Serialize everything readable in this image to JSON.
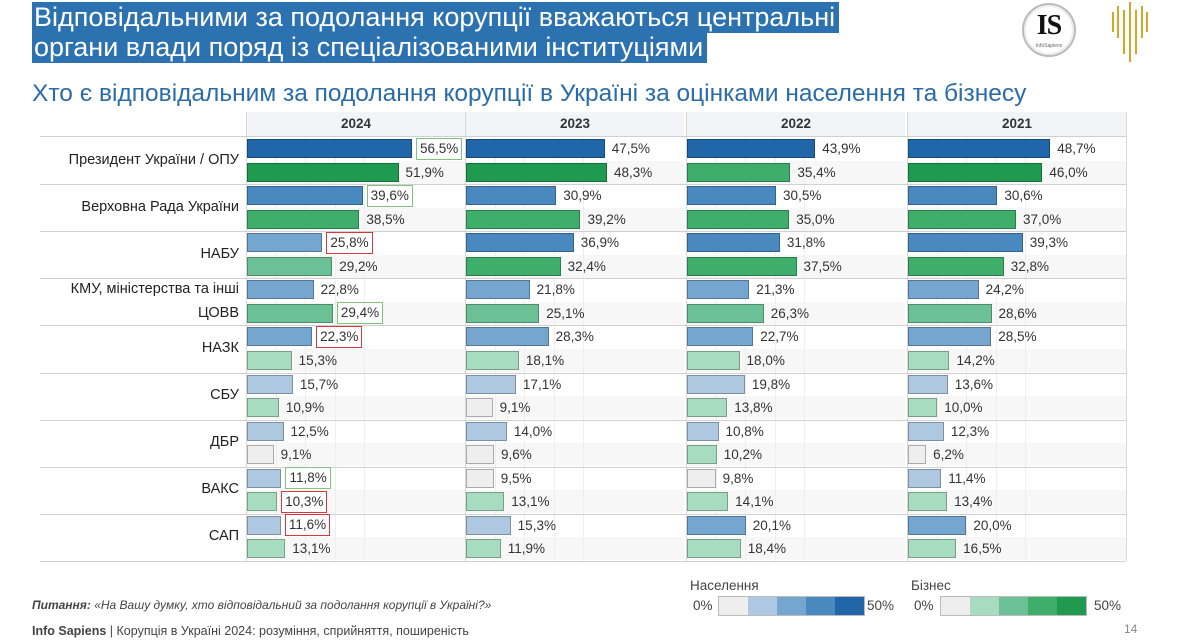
{
  "header": {
    "title_line1": "Відповідальними за подолання корупції вважаються центральні",
    "title_line2": "органи влади поряд із спеціалізованими інституціями",
    "subtitle": "Хто є відповідальним за подолання корупції в Україні за оцінками населення та бізнесу",
    "logo_is_text": "IS",
    "logo_is_sub": "InfoSapiens"
  },
  "colors": {
    "title_bg": "#2c72b0",
    "subtitle": "#2a6ca8",
    "population_scale": [
      "#eeeeee",
      "#aec8e2",
      "#75a6d0",
      "#4a88c0",
      "#2166a8"
    ],
    "business_scale": [
      "#eeeeee",
      "#a8dcc0",
      "#6cc095",
      "#3fae6a",
      "#1f9a4f"
    ],
    "highlight_green": "#7cc47f",
    "highlight_red": "#d9363e"
  },
  "chart_data": {
    "type": "bar",
    "orientation": "horizontal",
    "title": "Хто є відповідальним за подолання корупції в Україні за оцінками населення та бізнесу",
    "xlim": [
      0,
      50
    ],
    "unit": "%",
    "panels": [
      "2024",
      "2023",
      "2022",
      "2021"
    ],
    "categories": [
      {
        "label_lines": [
          "Президент України / ОПУ"
        ]
      },
      {
        "label_lines": [
          "Верховна Рада України"
        ]
      },
      {
        "label_lines": [
          "НАБУ"
        ]
      },
      {
        "label_lines": [
          "КМУ, міністерства та інші",
          "ЦОВВ"
        ]
      },
      {
        "label_lines": [
          "НАЗК"
        ]
      },
      {
        "label_lines": [
          "СБУ"
        ]
      },
      {
        "label_lines": [
          "ДБР"
        ]
      },
      {
        "label_lines": [
          "ВАКС"
        ]
      },
      {
        "label_lines": [
          "САП"
        ]
      }
    ],
    "series": [
      {
        "name": "Населення",
        "values": {
          "2024": [
            56.5,
            39.6,
            25.8,
            22.8,
            22.3,
            15.7,
            12.5,
            11.8,
            11.6
          ],
          "2023": [
            47.5,
            30.9,
            36.9,
            21.8,
            28.3,
            17.1,
            14.0,
            9.5,
            15.3
          ],
          "2022": [
            43.9,
            30.5,
            31.8,
            21.3,
            22.7,
            19.8,
            10.8,
            9.8,
            20.1
          ],
          "2021": [
            48.7,
            30.6,
            39.3,
            24.2,
            28.5,
            13.6,
            12.3,
            11.4,
            20.0
          ]
        }
      },
      {
        "name": "Бізнес",
        "values": {
          "2024": [
            51.9,
            38.5,
            29.2,
            29.4,
            15.3,
            10.9,
            9.1,
            10.3,
            13.1
          ],
          "2023": [
            48.3,
            39.2,
            32.4,
            25.1,
            18.1,
            9.1,
            9.6,
            13.1,
            11.9
          ],
          "2022": [
            35.4,
            35.0,
            37.5,
            26.3,
            18.0,
            13.8,
            10.2,
            14.1,
            18.4
          ],
          "2021": [
            46.0,
            37.0,
            32.8,
            28.6,
            14.2,
            10.0,
            6.2,
            13.4,
            16.5
          ]
        }
      }
    ],
    "labels": {
      "2024": {
        "Населення": [
          "56,5%",
          "39,6%",
          "25,8%",
          "22,8%",
          "22,3%",
          "15,7%",
          "12,5%",
          "11,8%",
          "11,6%"
        ],
        "Бізнес": [
          "51,9%",
          "38,5%",
          "29,2%",
          "29,4%",
          "15,3%",
          "10,9%",
          "9,1%",
          "10,3%",
          "13,1%"
        ]
      },
      "2023": {
        "Населення": [
          "47,5%",
          "30,9%",
          "36,9%",
          "21,8%",
          "28,3%",
          "17,1%",
          "14,0%",
          "9,5%",
          "15,3%"
        ],
        "Бізнес": [
          "48,3%",
          "39,2%",
          "32,4%",
          "25,1%",
          "18,1%",
          "9,1%",
          "9,6%",
          "13,1%",
          "11,9%"
        ]
      },
      "2022": {
        "Населення": [
          "43,9%",
          "30,5%",
          "31,8%",
          "21,3%",
          "22,7%",
          "19,8%",
          "10,8%",
          "9,8%",
          "20,1%"
        ],
        "Бізнес": [
          "35,4%",
          "35,0%",
          "37,5%",
          "26,3%",
          "18,0%",
          "13,8%",
          "10,2%",
          "14,1%",
          "18,4%"
        ]
      },
      "2021": {
        "Населення": [
          "48,7%",
          "30,6%",
          "39,3%",
          "24,2%",
          "28,5%",
          "13,6%",
          "12,3%",
          "11,4%",
          "20,0%"
        ],
        "Бізнес": [
          "46,0%",
          "37,0%",
          "32,8%",
          "28,6%",
          "14,2%",
          "10,0%",
          "6,2%",
          "13,4%",
          "16,5%"
        ]
      }
    },
    "highlights_2024": {
      "Населення": [
        "green",
        "green",
        "red",
        null,
        "red",
        null,
        null,
        "green",
        "red"
      ],
      "Бізнес": [
        null,
        null,
        null,
        "green",
        null,
        null,
        null,
        "red",
        null
      ]
    },
    "legend": [
      {
        "name": "Населення",
        "min_label": "0%",
        "max_label": "50%"
      },
      {
        "name": "Бізнес",
        "min_label": "0%",
        "max_label": "50%"
      }
    ],
    "legend_position": "bottom-right",
    "grid": true
  },
  "footer": {
    "question_label": "Питання:",
    "question_text": " «На Вашу думку, хто відповідальний за подолання корупції в Україні?»",
    "source_brand": "Info Sapiens",
    "source_text": " | Корупція в Україні 2024: розуміння, сприйняття, поширеність",
    "page_number": "14"
  }
}
